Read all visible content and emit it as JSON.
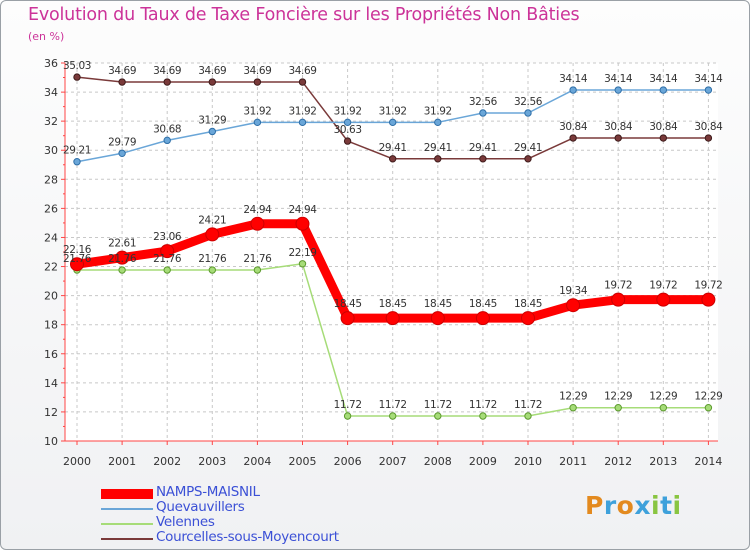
{
  "title": "Evolution du Taux de Taxe Foncière sur les Propriétés Non Bâties",
  "unit": "(en %)",
  "brand": "Proxiti",
  "chart_data": {
    "type": "line",
    "x": [
      "2000",
      "2001",
      "2002",
      "2003",
      "2004",
      "2005",
      "2006",
      "2007",
      "2008",
      "2009",
      "2010",
      "2011",
      "2012",
      "2013",
      "2014"
    ],
    "ylim": [
      10,
      36
    ],
    "yticks": [
      10,
      12,
      14,
      16,
      18,
      20,
      22,
      24,
      26,
      28,
      30,
      32,
      34,
      36
    ],
    "grid": true,
    "legend_position": "bottom-left",
    "series": [
      {
        "name": "NAMPS-MAISNIL",
        "color": "#ff0000",
        "values": [
          22.16,
          22.61,
          23.06,
          24.21,
          24.94,
          24.94,
          18.45,
          18.45,
          18.45,
          18.45,
          18.45,
          19.34,
          19.72,
          19.72,
          19.72
        ],
        "labels": [
          "22.16",
          "22.61",
          "23.06",
          "24.21",
          "24.94",
          "24.94",
          "18.45",
          "18.45",
          "18.45",
          "18.45",
          "18.45",
          "19.34",
          "19.72",
          "19.72",
          "19.72"
        ]
      },
      {
        "name": "Quevauvillers",
        "color": "#6aa6d8",
        "values": [
          29.21,
          29.79,
          30.68,
          31.29,
          31.92,
          31.92,
          31.92,
          31.92,
          31.92,
          32.56,
          32.56,
          34.14,
          34.14,
          34.14,
          34.14
        ],
        "labels": [
          "29.21",
          "29.79",
          "30.68",
          "31.29",
          "31.92",
          "31.92",
          "31.92",
          "31.92",
          "31.92",
          "32.56",
          "32.56",
          "34.14",
          "34.14",
          "34.14",
          "34.14"
        ]
      },
      {
        "name": "Velennes",
        "color": "#a6dc78",
        "values": [
          21.76,
          21.76,
          21.76,
          21.76,
          21.76,
          22.19,
          11.72,
          11.72,
          11.72,
          11.72,
          11.72,
          12.29,
          12.29,
          12.29,
          12.29
        ],
        "labels": [
          "21.76",
          "21.76",
          "21.76",
          "21.76",
          "21.76",
          "22.19",
          "11.72",
          "11.72",
          "11.72",
          "11.72",
          "11.72",
          "12.29",
          "12.29",
          "12.29",
          "12.29"
        ]
      },
      {
        "name": "Courcelles-sous-Moyencourt",
        "color": "#7a3a3a",
        "values": [
          35.03,
          34.69,
          34.69,
          34.69,
          34.69,
          34.69,
          30.63,
          29.41,
          29.41,
          29.41,
          29.41,
          30.84,
          30.84,
          30.84,
          30.84
        ],
        "labels": [
          "35.03",
          "34.69",
          "34.69",
          "34.69",
          "34.69",
          "34.69",
          "30.63",
          "29.41",
          "29.41",
          "29.41",
          "29.41",
          "30.84",
          "30.84",
          "30.84",
          "30.84"
        ]
      }
    ]
  }
}
